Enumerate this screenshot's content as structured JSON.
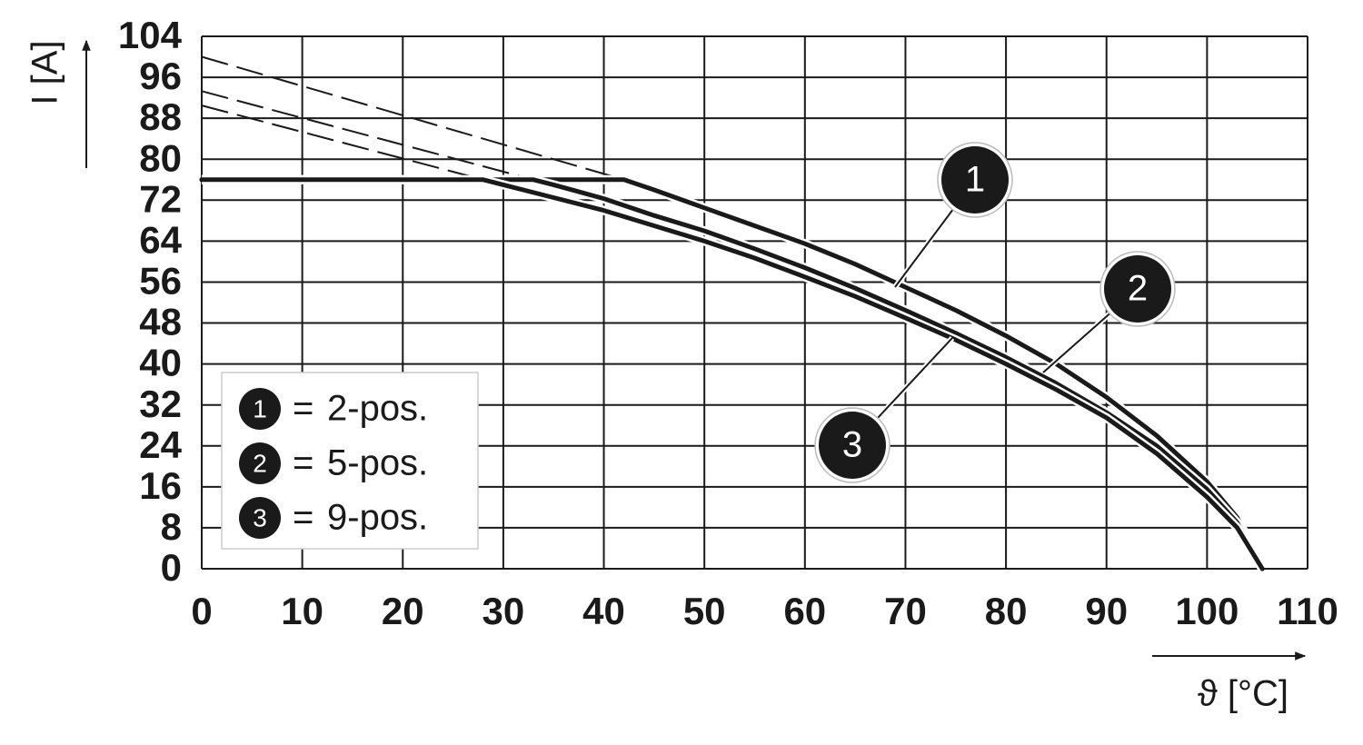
{
  "chart_data": {
    "type": "line",
    "x_label": "ϑ [°C]",
    "y_label": "I [A]",
    "xlim": [
      0,
      110
    ],
    "xticks": [
      0,
      10,
      20,
      30,
      40,
      50,
      60,
      70,
      80,
      90,
      100,
      110
    ],
    "ylim": [
      0,
      104
    ],
    "yticks": [
      0,
      8,
      16,
      24,
      32,
      40,
      48,
      56,
      64,
      72,
      80,
      88,
      96,
      104
    ],
    "grid": true,
    "legend_sign": "=",
    "legend": "lower left",
    "series": [
      {
        "marker": "1",
        "name": "2-pos.",
        "color": "#1a1a1a",
        "x": [
          0,
          42,
          45,
          50,
          55,
          60,
          65,
          70,
          75,
          80,
          85,
          90,
          95,
          100,
          103,
          105.5
        ],
        "values": [
          76,
          76,
          74,
          70.5,
          67,
          63.5,
          59.5,
          55,
          50.5,
          45.5,
          40,
          33.5,
          26,
          17,
          10,
          0
        ],
        "dashed": {
          "x": [
            0,
            42
          ],
          "values": [
            100,
            76
          ]
        }
      },
      {
        "marker": "2",
        "name": "5-pos.",
        "color": "#1a1a1a",
        "x": [
          0,
          33,
          35,
          40,
          45,
          50,
          55,
          60,
          65,
          70,
          75,
          80,
          85,
          90,
          95,
          100,
          103,
          105.5
        ],
        "values": [
          76,
          76,
          75,
          72.3,
          69,
          66,
          62.5,
          58.8,
          54.8,
          50.5,
          46,
          41.3,
          36.2,
          30.5,
          24,
          15.5,
          9,
          0
        ],
        "dashed": {
          "x": [
            0,
            33
          ],
          "values": [
            93.3,
            76
          ]
        }
      },
      {
        "marker": "3",
        "name": "9-pos.",
        "color": "#1a1a1a",
        "x": [
          0,
          28,
          30,
          35,
          40,
          45,
          50,
          55,
          60,
          65,
          70,
          75,
          80,
          85,
          90,
          95,
          100,
          103,
          105.5
        ],
        "values": [
          76,
          76,
          75,
          72.5,
          70,
          67,
          64,
          60.7,
          57,
          53.2,
          49,
          44.7,
          40,
          35,
          29.5,
          22.5,
          14,
          8,
          0
        ],
        "dashed": {
          "x": [
            0,
            28
          ],
          "values": [
            90.5,
            76
          ]
        }
      }
    ]
  }
}
